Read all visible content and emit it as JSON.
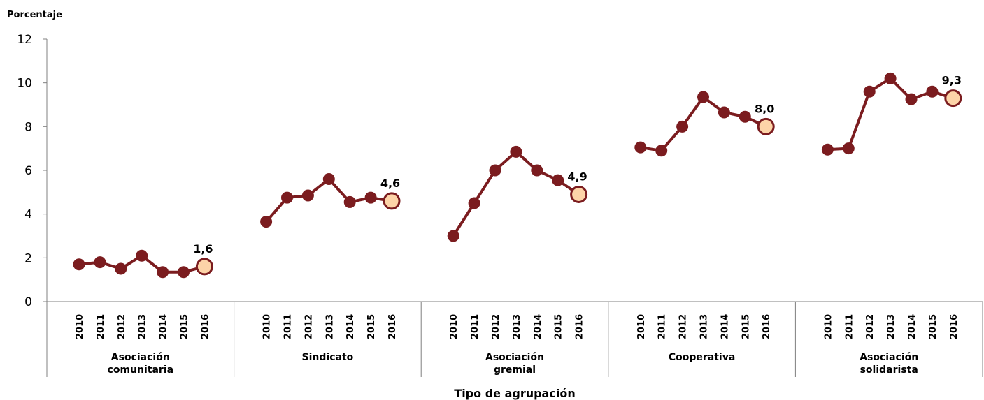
{
  "chart_data": {
    "type": "line",
    "ylabel": "Porcentaje",
    "xlabel": "Tipo de agrupación",
    "ylim": [
      0,
      12
    ],
    "yticks": [
      "0",
      "2",
      "4",
      "6",
      "8",
      "10",
      "12"
    ],
    "years": [
      "2010",
      "2011",
      "2012",
      "2013",
      "2014",
      "2015",
      "2016"
    ],
    "groups": [
      {
        "name_lines": [
          "Asociación",
          "comunitaria"
        ],
        "values": [
          1.7,
          1.8,
          1.5,
          2.1,
          1.35,
          1.35,
          1.6
        ],
        "last_label": "1,6"
      },
      {
        "name_lines": [
          "Sindicato"
        ],
        "values": [
          3.65,
          4.75,
          4.85,
          5.6,
          4.55,
          4.75,
          4.6
        ],
        "last_label": "4,6"
      },
      {
        "name_lines": [
          "Asociación",
          "gremial"
        ],
        "values": [
          3.0,
          4.5,
          6.0,
          6.85,
          6.0,
          5.55,
          4.9
        ],
        "last_label": "4,9"
      },
      {
        "name_lines": [
          "Cooperativa"
        ],
        "values": [
          7.05,
          6.9,
          8.0,
          9.35,
          8.65,
          8.45,
          8.0
        ],
        "last_label": "8,0"
      },
      {
        "name_lines": [
          "Asociación",
          "solidarista"
        ],
        "values": [
          6.95,
          7.0,
          9.6,
          10.2,
          9.25,
          9.6,
          9.3
        ],
        "last_label": "9,3"
      }
    ],
    "colors": {
      "line": "#7b1c1f",
      "marker": "#7b1c1f",
      "highlight_fill": "#fdd4a8",
      "highlight_stroke": "#7b1c1f",
      "axis": "#808080"
    }
  }
}
